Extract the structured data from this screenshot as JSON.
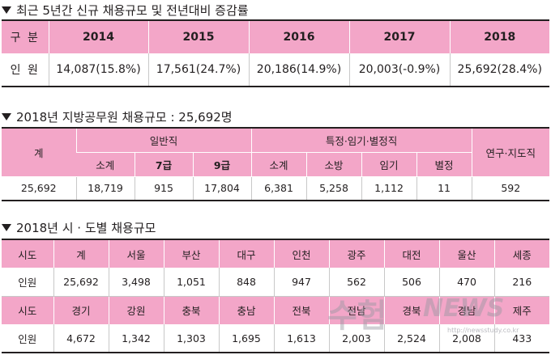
{
  "section1": {
    "title": "최근 5년간 신규 채용규모 및 전년대비 증감률",
    "header_label": "구 분",
    "years": [
      "2014",
      "2015",
      "2016",
      "2017",
      "2018"
    ],
    "row_label": "인 원",
    "values": [
      "14,087(15.8%)",
      "17,561(24.7%)",
      "20,186(14.9%)",
      "20,003(-0.9%)",
      "25,692(28.4%)"
    ]
  },
  "section2": {
    "title": "2018년 지방공무원 채용규모 : 25,692명",
    "total_label": "계",
    "group_general": "일반직",
    "group_special": "특정·임기·별정직",
    "group_research": "연구·지도직",
    "sub_general": [
      "소계",
      "7급",
      "9급"
    ],
    "sub_special": [
      "소계",
      "소방",
      "임기",
      "별정"
    ],
    "values": [
      "25,692",
      "18,719",
      "915",
      "17,804",
      "6,381",
      "5,258",
      "1,112",
      "11",
      "592"
    ]
  },
  "section3": {
    "title": "2018년 시 · 도별 채용규모",
    "row_label_region": "시도",
    "row_label_count": "인원",
    "regions_1": [
      "계",
      "서울",
      "부산",
      "대구",
      "인천",
      "광주",
      "대전",
      "울산",
      "세종"
    ],
    "counts_1": [
      "25,692",
      "3,498",
      "1,051",
      "848",
      "947",
      "562",
      "506",
      "470",
      "216"
    ],
    "regions_2": [
      "경기",
      "강원",
      "충북",
      "충남",
      "전북",
      "전남",
      "경북",
      "경남",
      "제주"
    ],
    "counts_2": [
      "4,672",
      "1,342",
      "1,303",
      "1,695",
      "1,613",
      "2,003",
      "2,524",
      "2,008",
      "433"
    ]
  },
  "watermark": {
    "text_main": "수험",
    "text_news": "NEWS",
    "url": "http://newsstudy.co.kr"
  },
  "colors": {
    "header_pink": "#f3a6c8",
    "text": "#231f20"
  }
}
